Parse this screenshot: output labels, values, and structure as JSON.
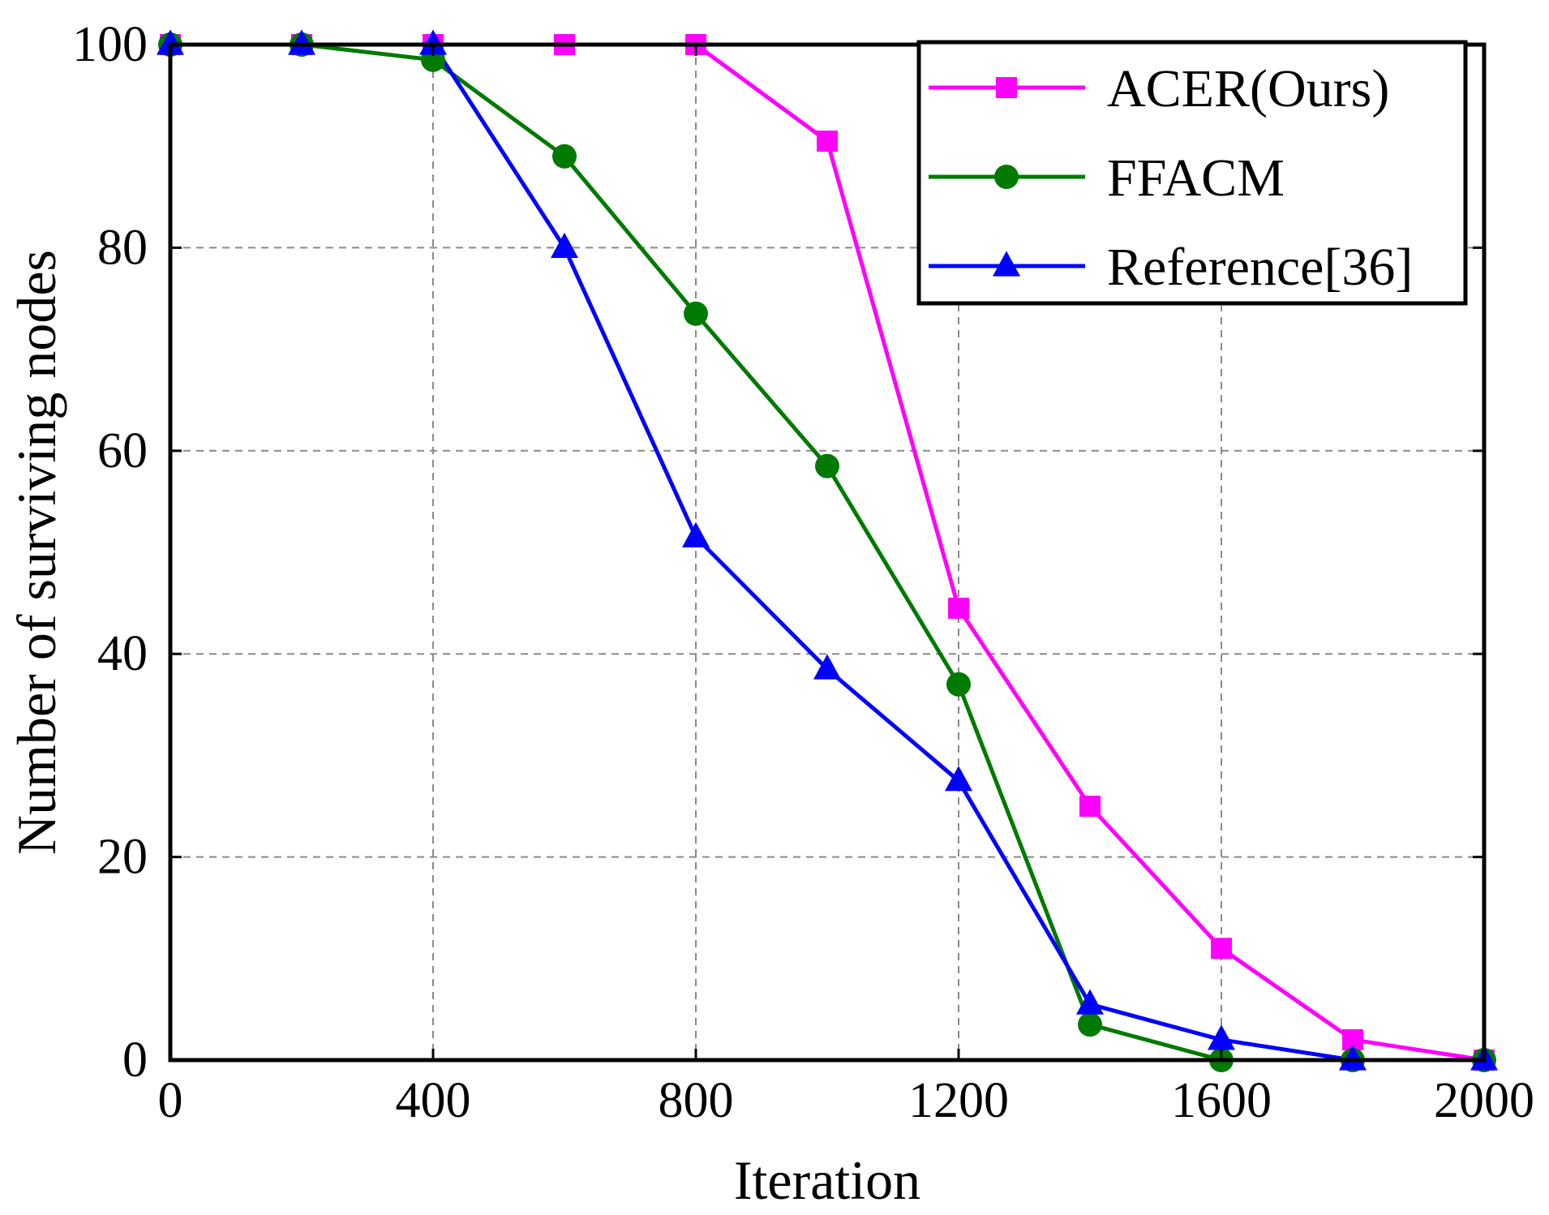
{
  "chart_data": {
    "type": "line",
    "title": "",
    "xlabel": "Iteration",
    "ylabel": "Number of surviving nodes",
    "xlim": [
      0,
      2000
    ],
    "ylim": [
      0,
      100
    ],
    "x_ticks": [
      0,
      400,
      800,
      1200,
      1600,
      2000
    ],
    "y_ticks": [
      0,
      20,
      40,
      60,
      80,
      100
    ],
    "x_tick_labels": [
      "0",
      "400",
      "800",
      "1200",
      "1600",
      "2000"
    ],
    "y_tick_labels": [
      "0",
      "20",
      "40",
      "60",
      "80",
      "100"
    ],
    "grid": true,
    "legend_position": "top-right",
    "x": [
      0,
      200,
      400,
      600,
      800,
      1000,
      1200,
      1400,
      1600,
      1800,
      2000
    ],
    "series": [
      {
        "name": "ACER(Ours)",
        "color": "#ff00ff",
        "marker": "square",
        "values": [
          100,
          100,
          100,
          100,
          100,
          90.5,
          44.5,
          25,
          11,
          2,
          0
        ]
      },
      {
        "name": "FFACM",
        "color": "#007a00",
        "marker": "circle",
        "values": [
          100,
          100,
          98.5,
          89,
          73.5,
          58.5,
          37,
          3.5,
          0,
          0,
          0
        ]
      },
      {
        "name": "Reference[36]",
        "color": "#0000ff",
        "marker": "triangle",
        "values": [
          100,
          100,
          100,
          80,
          51.5,
          38.5,
          27.5,
          5.5,
          2,
          0,
          0
        ]
      }
    ]
  }
}
